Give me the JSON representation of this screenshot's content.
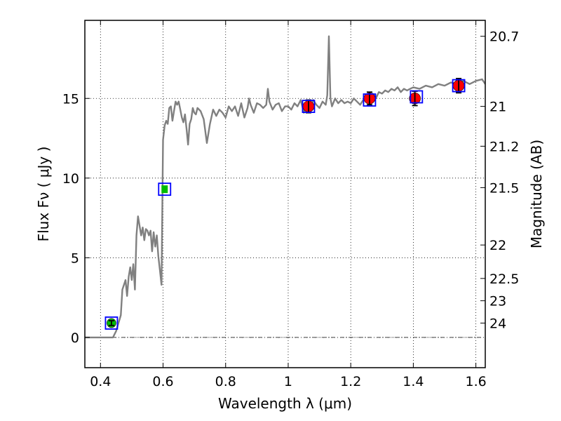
{
  "chart_data": {
    "type": "scatter",
    "title": "",
    "xlabel": "Wavelength  λ (μm)",
    "ylabel": "Flux  Fν  ( μJy )",
    "ylabel_right": "Magnitude (AB)",
    "xlim": [
      0.35,
      1.63
    ],
    "ylim": [
      -1.9,
      19.9
    ],
    "grid": true,
    "x_ticks": [
      {
        "value": 0.4,
        "label": "0.4"
      },
      {
        "value": 0.6,
        "label": "0.6"
      },
      {
        "value": 0.8,
        "label": "0.8"
      },
      {
        "value": 1.0,
        "label": "1"
      },
      {
        "value": 1.2,
        "label": "1.2"
      },
      {
        "value": 1.4,
        "label": "1.4"
      },
      {
        "value": 1.6,
        "label": "1.6"
      }
    ],
    "y_ticks": [
      {
        "value": 0,
        "label": "0"
      },
      {
        "value": 5,
        "label": "5"
      },
      {
        "value": 10,
        "label": "10"
      },
      {
        "value": 15,
        "label": "15"
      }
    ],
    "right_ticks": [
      {
        "flux": 18.9,
        "label": "20.7"
      },
      {
        "flux": 14.5,
        "label": "21"
      },
      {
        "flux": 12.0,
        "label": "21.2"
      },
      {
        "flux": 9.4,
        "label": "21.5"
      },
      {
        "flux": 5.8,
        "label": "22"
      },
      {
        "flux": 3.7,
        "label": "22.5"
      },
      {
        "flux": 2.3,
        "label": "23"
      },
      {
        "flux": 0.9,
        "label": "24"
      }
    ],
    "zero_line": 0,
    "series": [
      {
        "role": "sed_model",
        "color": "#808080",
        "x": [
          0.35,
          0.44,
          0.45,
          0.465,
          0.47,
          0.48,
          0.485,
          0.49,
          0.495,
          0.5,
          0.505,
          0.51,
          0.515,
          0.52,
          0.53,
          0.535,
          0.54,
          0.545,
          0.55,
          0.555,
          0.56,
          0.565,
          0.57,
          0.575,
          0.58,
          0.585,
          0.59,
          0.595,
          0.6,
          0.605,
          0.61,
          0.615,
          0.62,
          0.625,
          0.63,
          0.635,
          0.64,
          0.645,
          0.65,
          0.655,
          0.66,
          0.665,
          0.67,
          0.675,
          0.68,
          0.685,
          0.69,
          0.695,
          0.7,
          0.705,
          0.71,
          0.72,
          0.73,
          0.74,
          0.75,
          0.76,
          0.77,
          0.78,
          0.79,
          0.8,
          0.81,
          0.82,
          0.83,
          0.84,
          0.85,
          0.86,
          0.87,
          0.875,
          0.88,
          0.89,
          0.9,
          0.91,
          0.92,
          0.93,
          0.935,
          0.94,
          0.95,
          0.96,
          0.97,
          0.98,
          0.99,
          1.0,
          1.01,
          1.02,
          1.03,
          1.04,
          1.05,
          1.06,
          1.07,
          1.08,
          1.09,
          1.1,
          1.11,
          1.12,
          1.125,
          1.13,
          1.135,
          1.14,
          1.15,
          1.16,
          1.17,
          1.18,
          1.19,
          1.2,
          1.21,
          1.22,
          1.23,
          1.24,
          1.25,
          1.26,
          1.27,
          1.28,
          1.29,
          1.3,
          1.31,
          1.32,
          1.33,
          1.34,
          1.35,
          1.36,
          1.37,
          1.38,
          1.39,
          1.4,
          1.42,
          1.44,
          1.46,
          1.48,
          1.5,
          1.52,
          1.54,
          1.56,
          1.58,
          1.6,
          1.62,
          1.63
        ],
        "y": [
          0.0,
          0.0,
          0.4,
          1.4,
          3.0,
          3.6,
          2.6,
          3.8,
          4.4,
          3.6,
          4.6,
          3.0,
          6.4,
          7.6,
          6.4,
          6.9,
          6.1,
          6.8,
          6.7,
          6.4,
          6.7,
          5.4,
          6.6,
          5.7,
          6.4,
          5.1,
          4.2,
          3.3,
          12.4,
          13.3,
          13.6,
          13.4,
          14.4,
          14.5,
          13.6,
          14.2,
          14.8,
          14.6,
          14.8,
          14.3,
          13.8,
          13.5,
          14.0,
          13.1,
          12.1,
          13.4,
          13.7,
          14.4,
          14.1,
          14.0,
          14.4,
          14.2,
          13.7,
          12.2,
          13.4,
          14.3,
          13.9,
          14.3,
          14.1,
          13.8,
          14.5,
          14.2,
          14.5,
          13.9,
          14.7,
          13.8,
          14.4,
          15.0,
          14.6,
          14.1,
          14.7,
          14.6,
          14.4,
          14.6,
          15.6,
          14.8,
          14.3,
          14.6,
          14.7,
          14.2,
          14.5,
          14.5,
          14.3,
          14.7,
          14.5,
          14.9,
          14.1,
          14.6,
          14.4,
          14.9,
          14.6,
          14.4,
          14.8,
          14.6,
          15.2,
          18.9,
          15.0,
          14.5,
          15.0,
          14.7,
          14.9,
          14.7,
          14.8,
          14.7,
          15.0,
          14.8,
          14.6,
          14.9,
          15.1,
          14.9,
          15.3,
          15.0,
          15.4,
          15.3,
          15.5,
          15.4,
          15.6,
          15.5,
          15.7,
          15.4,
          15.6,
          15.5,
          15.6,
          15.7,
          15.6,
          15.8,
          15.7,
          15.9,
          15.8,
          16.0,
          15.9,
          16.1,
          15.9,
          16.1,
          16.2,
          15.9
        ]
      },
      {
        "role": "model_band_flux",
        "marker": "open-square",
        "color": "#0000ff",
        "x": [
          0.435,
          0.605,
          1.065,
          1.26,
          1.41,
          1.545
        ],
        "y": [
          0.9,
          9.3,
          14.5,
          14.9,
          15.1,
          15.8
        ]
      },
      {
        "role": "observed_hst",
        "marker": "circle",
        "color": "#ff0000",
        "x": [
          1.065,
          1.26,
          1.405,
          1.545
        ],
        "y": [
          14.5,
          15.0,
          15.0,
          15.8
        ],
        "yerr": [
          0.4,
          0.4,
          0.45,
          0.45
        ]
      },
      {
        "role": "observed_ground",
        "marker": "circle",
        "color": "#00bb00",
        "x": [
          0.435
        ],
        "y": [
          0.9
        ],
        "yerr": [
          0.15
        ]
      },
      {
        "role": "observed_ground_small",
        "marker": "square",
        "color": "#00bb00",
        "x": [
          0.605
        ],
        "y": [
          9.3
        ]
      }
    ]
  }
}
